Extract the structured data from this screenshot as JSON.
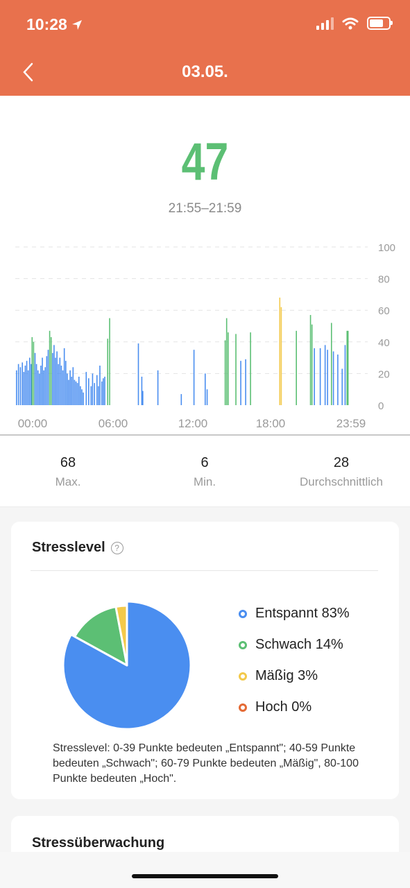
{
  "status": {
    "time": "10:28"
  },
  "header": {
    "title": "03.05."
  },
  "current": {
    "value": "47",
    "range": "21:55–21:59"
  },
  "stats": [
    {
      "value": "68",
      "label": "Max."
    },
    {
      "value": "6",
      "label": "Min."
    },
    {
      "value": "28",
      "label": "Durchschnittlich"
    }
  ],
  "card": {
    "title": "Stresslevel",
    "legend": [
      {
        "label": "Entspannt 83%",
        "color": "#4a8ef0"
      },
      {
        "label": "Schwach 14%",
        "color": "#5cbf74"
      },
      {
        "label": "Mäßig 3%",
        "color": "#f3c94a"
      },
      {
        "label": "Hoch 0%",
        "color": "#e46a35"
      }
    ],
    "note": "Stresslevel: 0-39 Punkte bedeuten „Entspannt\"; 40-59 Punkte bedeuten „Schwach\"; 60-79 Punkte bedeuten „Mäßig\", 80-100 Punkte bedeuten „Hoch\"."
  },
  "card2": {
    "title": "Stressüberwachung"
  },
  "chart_data": [
    {
      "type": "bar",
      "ylim": [
        0,
        100
      ],
      "yticks": [
        "0",
        "20",
        "40",
        "60",
        "80",
        "100"
      ],
      "xticks": [
        "00:00",
        "06:00",
        "12:00",
        "18:00",
        "23:59"
      ],
      "x_unit": "minutes since 00:00",
      "colors": {
        "relaxed": "#4a8ef0",
        "mild": "#5cbf74",
        "moderate": "#f3c94a",
        "high": "#e46a35"
      },
      "points": [
        [
          0,
          22
        ],
        [
          8,
          26
        ],
        [
          16,
          24
        ],
        [
          24,
          27
        ],
        [
          30,
          21
        ],
        [
          36,
          25
        ],
        [
          42,
          28
        ],
        [
          48,
          22
        ],
        [
          54,
          30
        ],
        [
          60,
          26
        ],
        [
          64,
          43
        ],
        [
          70,
          40
        ],
        [
          76,
          33
        ],
        [
          82,
          26
        ],
        [
          88,
          22
        ],
        [
          94,
          20
        ],
        [
          100,
          25
        ],
        [
          106,
          30
        ],
        [
          112,
          22
        ],
        [
          118,
          24
        ],
        [
          124,
          31
        ],
        [
          130,
          35
        ],
        [
          136,
          47
        ],
        [
          142,
          43
        ],
        [
          148,
          33
        ],
        [
          154,
          38
        ],
        [
          160,
          30
        ],
        [
          166,
          34
        ],
        [
          172,
          26
        ],
        [
          178,
          30
        ],
        [
          184,
          25
        ],
        [
          190,
          22
        ],
        [
          196,
          36
        ],
        [
          202,
          28
        ],
        [
          208,
          20
        ],
        [
          214,
          16
        ],
        [
          220,
          22
        ],
        [
          226,
          18
        ],
        [
          232,
          24
        ],
        [
          238,
          16
        ],
        [
          244,
          15
        ],
        [
          250,
          14
        ],
        [
          256,
          18
        ],
        [
          262,
          12
        ],
        [
          268,
          10
        ],
        [
          274,
          8
        ],
        [
          286,
          21
        ],
        [
          296,
          17
        ],
        [
          306,
          12
        ],
        [
          312,
          20
        ],
        [
          320,
          14
        ],
        [
          330,
          19
        ],
        [
          336,
          12
        ],
        [
          342,
          25
        ],
        [
          350,
          15
        ],
        [
          356,
          17
        ],
        [
          362,
          18
        ],
        [
          374,
          42
        ],
        [
          382,
          55
        ],
        [
          500,
          39
        ],
        [
          514,
          18
        ],
        [
          518,
          9
        ],
        [
          580,
          22
        ],
        [
          676,
          7
        ],
        [
          728,
          35
        ],
        [
          774,
          20
        ],
        [
          782,
          10
        ],
        [
          856,
          41
        ],
        [
          862,
          55
        ],
        [
          868,
          46
        ],
        [
          900,
          45
        ],
        [
          920,
          28
        ],
        [
          940,
          29
        ],
        [
          960,
          46
        ],
        [
          1080,
          68
        ],
        [
          1086,
          62
        ],
        [
          1148,
          47
        ],
        [
          1206,
          57
        ],
        [
          1212,
          51
        ],
        [
          1222,
          36
        ],
        [
          1246,
          36
        ],
        [
          1266,
          38
        ],
        [
          1276,
          35
        ],
        [
          1292,
          52
        ],
        [
          1300,
          34
        ],
        [
          1318,
          32
        ],
        [
          1336,
          23
        ],
        [
          1348,
          38
        ],
        [
          1356,
          47
        ],
        [
          1360,
          47
        ]
      ]
    },
    {
      "type": "pie",
      "categories": [
        "Entspannt",
        "Schwach",
        "Mäßig",
        "Hoch"
      ],
      "values": [
        83,
        14,
        3,
        0
      ]
    }
  ]
}
